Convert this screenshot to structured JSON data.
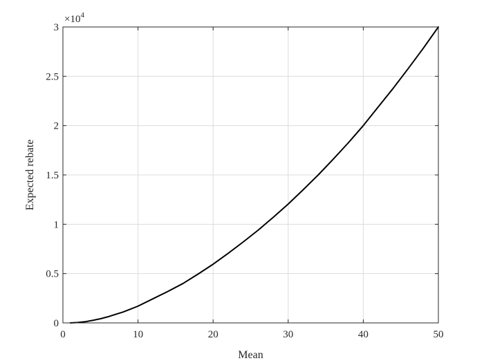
{
  "chart_data": {
    "type": "line",
    "title": "",
    "xlabel": "Mean",
    "ylabel": "Expected rebate",
    "xlim": [
      0,
      50
    ],
    "ylim": [
      0,
      30000
    ],
    "x_ticks": [
      0,
      10,
      20,
      30,
      40,
      50
    ],
    "x_tick_labels": [
      "0",
      "10",
      "20",
      "30",
      "40",
      "50"
    ],
    "y_ticks": [
      0,
      5000,
      10000,
      15000,
      20000,
      25000,
      30000
    ],
    "y_tick_labels": [
      "0",
      "0.5",
      "1",
      "1.5",
      "2",
      "2.5",
      "3"
    ],
    "y_exponent_label": {
      "base": "×10",
      "power": "4"
    },
    "grid": true,
    "series": [
      {
        "color": "#000000",
        "x": [
          1,
          2,
          3,
          4,
          5,
          6,
          7,
          8,
          9,
          10,
          12,
          14,
          16,
          18,
          20,
          22,
          24,
          26,
          28,
          30,
          32,
          34,
          36,
          38,
          40,
          42,
          44,
          46,
          48,
          50
        ],
        "y": [
          0,
          40,
          120,
          260,
          420,
          620,
          860,
          1100,
          1400,
          1700,
          2450,
          3200,
          4000,
          4950,
          5950,
          7050,
          8200,
          9400,
          10700,
          12050,
          13500,
          15000,
          16600,
          18250,
          20000,
          21900,
          23800,
          25800,
          27850,
          30000
        ]
      }
    ]
  }
}
